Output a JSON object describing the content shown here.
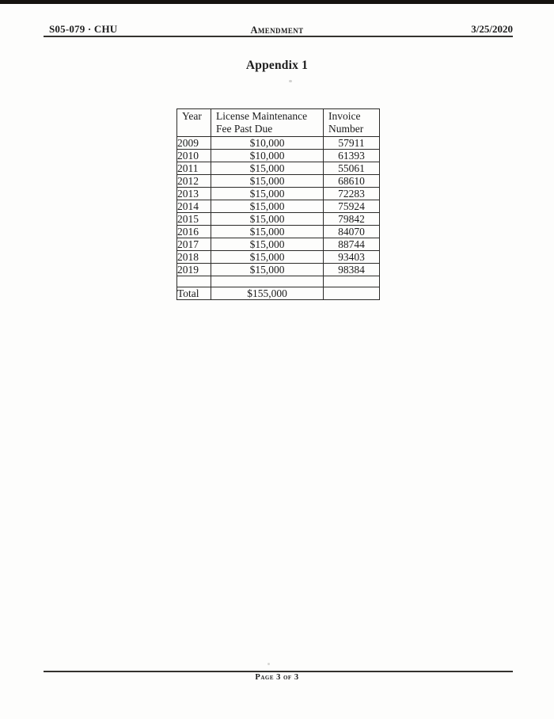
{
  "document": {
    "header": {
      "left_label": "S05-079 · CHU",
      "center_label": "Amendment",
      "right_date": "3/25/2020"
    },
    "title": "Appendix 1",
    "table": {
      "col1_header": "Year",
      "col2_header_line1": "License Maintenance",
      "col2_header_line2": "Fee Past Due",
      "col3_header_line1": "Invoice",
      "col3_header_line2": "Number",
      "rows": [
        {
          "year": "2009",
          "fee": "$10,000",
          "invoice": "57911"
        },
        {
          "year": "2010",
          "fee": "$10,000",
          "invoice": "61393"
        },
        {
          "year": "2011",
          "fee": "$15,000",
          "invoice": "55061"
        },
        {
          "year": "2012",
          "fee": "$15,000",
          "invoice": "68610"
        },
        {
          "year": "2013",
          "fee": "$15,000",
          "invoice": "72283"
        },
        {
          "year": "2014",
          "fee": "$15,000",
          "invoice": "75924"
        },
        {
          "year": "2015",
          "fee": "$15,000",
          "invoice": "79842"
        },
        {
          "year": "2016",
          "fee": "$15,000",
          "invoice": "84070"
        },
        {
          "year": "2017",
          "fee": "$15,000",
          "invoice": "88744"
        },
        {
          "year": "2018",
          "fee": "$15,000",
          "invoice": "93403"
        },
        {
          "year": "2019",
          "fee": "$15,000",
          "invoice": "98384"
        }
      ],
      "total_label": "Total",
      "total_fee": "$155,000"
    },
    "footer": {
      "page_label": "Page 3 of 3"
    }
  },
  "colors": {
    "ink": "#1d1d1d",
    "rule": "#35332f",
    "paper": "#fdfdfc",
    "scan_bar": "#15130f",
    "table_border": "#2b2a28"
  }
}
